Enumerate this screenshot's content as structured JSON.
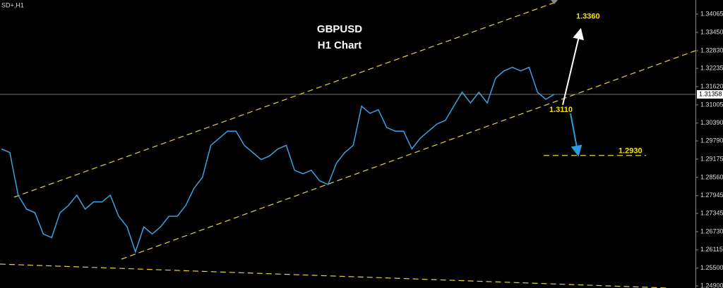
{
  "chart_data": {
    "type": "line",
    "symbol_label": "SD+,H1",
    "title": "GBPUSD",
    "subtitle": "H1 Chart",
    "color": "#3ea0e0",
    "values": [
      1.2952,
      1.294,
      1.2796,
      1.2749,
      1.2737,
      1.2665,
      1.2653,
      1.2737,
      1.2761,
      1.2796,
      1.2749,
      1.2773,
      1.2773,
      1.2796,
      1.2725,
      1.2689,
      1.2605,
      1.2689,
      1.2665,
      1.2689,
      1.2725,
      1.2725,
      1.2761,
      1.282,
      1.2856,
      1.2964,
      1.2988,
      1.3012,
      1.3012,
      1.2964,
      1.294,
      1.2916,
      1.2928,
      1.2952,
      1.2964,
      1.288,
      1.2868,
      1.288,
      1.2844,
      1.2832,
      1.2904,
      1.294,
      1.2964,
      1.3096,
      1.3072,
      1.3084,
      1.3024,
      1.3012,
      1.3012,
      1.2952,
      1.2988,
      1.3012,
      1.3036,
      1.3048,
      1.3096,
      1.3143,
      1.3107,
      1.3143,
      1.3107,
      1.3191,
      1.3215,
      1.3227,
      1.3215,
      1.3227,
      1.3143,
      1.3119,
      1.3136
    ],
    "ylim": [
      1.2483,
      1.3454
    ],
    "yticks": [
      1.34065,
      {
        "value": 1.3345,
        "label": "1.33450"
      },
      {
        "value": 1.3283,
        "label": "1.32830"
      },
      1.32235,
      {
        "value": 1.3162,
        "label": "1.31620"
      },
      1.31005,
      {
        "value": 1.3039,
        "label": "1.30390"
      },
      {
        "value": 1.2979,
        "label": "1.29790"
      },
      1.29175,
      {
        "value": 1.2856,
        "label": "1.28560"
      },
      1.27945,
      1.27345,
      {
        "value": 1.2673,
        "label": "1.26730"
      },
      1.26115,
      {
        "value": 1.255,
        "label": "1.25500"
      },
      {
        "value": 1.249,
        "label": "1.24900"
      }
    ],
    "current_price": 1.31358,
    "levels": [
      {
        "value": 1.336,
        "label": "1.3360"
      },
      {
        "value": 1.311,
        "label": "1.3110"
      },
      {
        "value": 1.293,
        "label": "1.2930"
      }
    ]
  }
}
